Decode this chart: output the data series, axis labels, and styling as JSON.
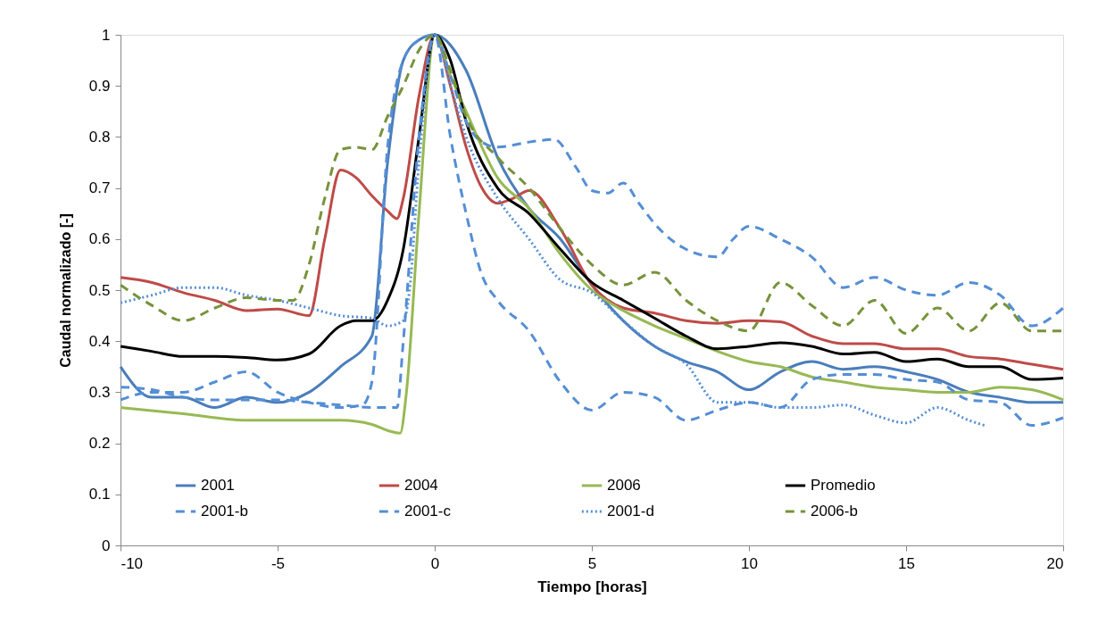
{
  "chart_data": {
    "type": "line",
    "xlabel": "Tiempo [horas]",
    "ylabel": "Caudal normalizado [-]",
    "xlim": [
      -10,
      20
    ],
    "xticks": [
      -10,
      -5,
      0,
      5,
      10,
      15,
      20
    ],
    "ylim": [
      0,
      1
    ],
    "yticks": [
      0,
      0.1,
      0.2,
      0.3,
      0.4,
      0.5,
      0.6,
      0.7,
      0.8,
      0.9,
      1
    ],
    "grid": false,
    "legend": "bottom",
    "marker": "none",
    "series": [
      {
        "name": "2001",
        "color": "#4a7ebb",
        "line_style": "solid",
        "x": [
          -10,
          -9,
          -8,
          -7,
          -6,
          -5,
          -4,
          -3,
          -2,
          -1.5,
          -1,
          -0.5,
          0,
          1,
          2,
          3,
          4,
          5,
          6,
          7,
          8,
          9,
          10,
          11,
          12,
          13,
          14,
          15,
          16,
          17,
          18,
          19,
          20
        ],
        "values": [
          0.35,
          0.29,
          0.29,
          0.27,
          0.29,
          0.28,
          0.3,
          0.35,
          0.41,
          0.75,
          0.95,
          0.99,
          1.0,
          0.93,
          0.76,
          0.66,
          0.6,
          0.51,
          0.44,
          0.39,
          0.36,
          0.34,
          0.305,
          0.34,
          0.36,
          0.345,
          0.35,
          0.34,
          0.325,
          0.3,
          0.29,
          0.28,
          0.28
        ]
      },
      {
        "name": "2004",
        "color": "#be4b48",
        "line_style": "solid",
        "x": [
          -10,
          -9,
          -8,
          -7,
          -6,
          -5,
          -4,
          -3.5,
          -3,
          -2.5,
          -2,
          -1.5,
          -1.2,
          -1,
          -0.5,
          0,
          0.5,
          1,
          1.5,
          2,
          2.5,
          3,
          4,
          5,
          6,
          7,
          8,
          9,
          10,
          11,
          12,
          13,
          14,
          15,
          16,
          17,
          18,
          19,
          20
        ],
        "values": [
          0.525,
          0.515,
          0.495,
          0.48,
          0.46,
          0.463,
          0.45,
          0.6,
          0.735,
          0.72,
          0.685,
          0.655,
          0.64,
          0.68,
          0.88,
          1.0,
          0.9,
          0.78,
          0.7,
          0.67,
          0.68,
          0.695,
          0.62,
          0.51,
          0.465,
          0.455,
          0.44,
          0.435,
          0.44,
          0.438,
          0.41,
          0.395,
          0.395,
          0.385,
          0.385,
          0.37,
          0.365,
          0.355,
          0.345
        ]
      },
      {
        "name": "2006",
        "color": "#98b954",
        "line_style": "solid",
        "x": [
          -10,
          -8,
          -6,
          -4,
          -3,
          -2,
          -1.5,
          -1.1,
          -0.9,
          -0.5,
          0,
          0.5,
          1,
          2,
          3,
          4,
          5,
          6,
          7,
          8,
          9,
          10,
          11,
          12,
          13,
          14,
          15,
          16,
          17,
          18,
          19,
          20
        ],
        "values": [
          0.27,
          0.258,
          0.245,
          0.245,
          0.245,
          0.237,
          0.225,
          0.22,
          0.3,
          0.65,
          1.0,
          0.92,
          0.85,
          0.72,
          0.66,
          0.57,
          0.5,
          0.46,
          0.43,
          0.405,
          0.38,
          0.36,
          0.35,
          0.33,
          0.32,
          0.31,
          0.305,
          0.3,
          0.3,
          0.31,
          0.305,
          0.285
        ]
      },
      {
        "name": "Promedio",
        "color": "#000000",
        "line_style": "solid",
        "x": [
          -10,
          -9,
          -8,
          -7,
          -6,
          -5,
          -4,
          -3,
          -2.5,
          -2,
          -1.5,
          -1,
          -0.5,
          0,
          0.5,
          1,
          2,
          3,
          4,
          5,
          6,
          7,
          8,
          9,
          10,
          11,
          12,
          13,
          14,
          15,
          16,
          17,
          18,
          19,
          20
        ],
        "values": [
          0.39,
          0.38,
          0.37,
          0.37,
          0.368,
          0.363,
          0.375,
          0.43,
          0.44,
          0.44,
          0.48,
          0.58,
          0.8,
          1.0,
          0.95,
          0.83,
          0.7,
          0.65,
          0.58,
          0.515,
          0.48,
          0.445,
          0.41,
          0.385,
          0.39,
          0.397,
          0.39,
          0.375,
          0.378,
          0.36,
          0.365,
          0.35,
          0.35,
          0.325,
          0.328
        ]
      },
      {
        "name": "2001-b",
        "color": "#558ed5",
        "line_style": "dashed",
        "x": [
          -10,
          -9,
          -8,
          -7,
          -6,
          -5,
          -4,
          -3,
          -2.3,
          -2,
          -1.5,
          -1,
          -0.5,
          0,
          0.5,
          1,
          1.5,
          2,
          3,
          4,
          5,
          6,
          7,
          8,
          9,
          10,
          11,
          12,
          13,
          14,
          15,
          16,
          17,
          18,
          19,
          20
        ],
        "values": [
          0.285,
          0.3,
          0.3,
          0.32,
          0.34,
          0.3,
          0.28,
          0.27,
          0.275,
          0.32,
          0.78,
          0.95,
          0.99,
          1.0,
          0.8,
          0.65,
          0.53,
          0.48,
          0.42,
          0.32,
          0.265,
          0.3,
          0.29,
          0.245,
          0.265,
          0.28,
          0.27,
          0.325,
          0.335,
          0.335,
          0.325,
          0.32,
          0.285,
          0.28,
          0.235,
          0.25
        ]
      },
      {
        "name": "2001-c",
        "color": "#558ed5",
        "line_style": "dashed",
        "x": [
          -10,
          -9,
          -8,
          -7,
          -6,
          -5,
          -4,
          -3,
          -2,
          -1.2,
          -1,
          -0.5,
          0,
          0.5,
          1,
          1.5,
          2,
          3,
          3.8,
          4.5,
          5,
          5.5,
          6,
          6.5,
          7,
          8,
          9,
          9.5,
          10,
          11,
          12,
          13,
          14,
          15,
          16,
          17,
          18,
          19,
          20
        ],
        "values": [
          0.31,
          0.305,
          0.29,
          0.285,
          0.285,
          0.285,
          0.28,
          0.275,
          0.27,
          0.27,
          0.4,
          0.8,
          1.0,
          0.92,
          0.83,
          0.79,
          0.78,
          0.79,
          0.795,
          0.74,
          0.695,
          0.69,
          0.71,
          0.67,
          0.63,
          0.58,
          0.565,
          0.6,
          0.625,
          0.6,
          0.565,
          0.505,
          0.525,
          0.5,
          0.49,
          0.515,
          0.49,
          0.43,
          0.465
        ]
      },
      {
        "name": "2001-d",
        "color": "#558ed5",
        "line_style": "dotted",
        "x": [
          -10,
          -9,
          -8,
          -7,
          -6,
          -5,
          -4,
          -3,
          -2,
          -1.5,
          -1,
          -0.8,
          -0.5,
          0,
          0.5,
          1,
          2,
          3,
          4,
          5,
          6,
          7,
          8,
          9,
          10,
          11,
          12,
          13,
          14,
          15,
          16,
          17,
          17.5
        ],
        "values": [
          0.475,
          0.49,
          0.505,
          0.505,
          0.49,
          0.48,
          0.465,
          0.45,
          0.445,
          0.43,
          0.44,
          0.5,
          0.75,
          1.0,
          0.9,
          0.8,
          0.68,
          0.6,
          0.52,
          0.495,
          0.44,
          0.39,
          0.355,
          0.28,
          0.28,
          0.27,
          0.27,
          0.275,
          0.255,
          0.24,
          0.27,
          0.245,
          0.235
        ]
      },
      {
        "name": "2006-b",
        "color": "#77933c",
        "line_style": "dashed",
        "x": [
          -10,
          -9,
          -8,
          -7,
          -6,
          -5,
          -4.5,
          -4,
          -3.5,
          -3,
          -2.5,
          -2,
          -1.5,
          -1,
          -0.5,
          0,
          0.5,
          1,
          2,
          3,
          4,
          5,
          6,
          7,
          8,
          9,
          10,
          11,
          12,
          13,
          14,
          15,
          16,
          17,
          18,
          19,
          20
        ],
        "values": [
          0.51,
          0.47,
          0.44,
          0.465,
          0.485,
          0.48,
          0.48,
          0.55,
          0.68,
          0.775,
          0.78,
          0.775,
          0.84,
          0.9,
          0.97,
          1.0,
          0.93,
          0.84,
          0.76,
          0.7,
          0.62,
          0.55,
          0.51,
          0.535,
          0.48,
          0.44,
          0.42,
          0.515,
          0.47,
          0.43,
          0.48,
          0.415,
          0.465,
          0.42,
          0.475,
          0.42,
          0.42
        ]
      }
    ]
  }
}
